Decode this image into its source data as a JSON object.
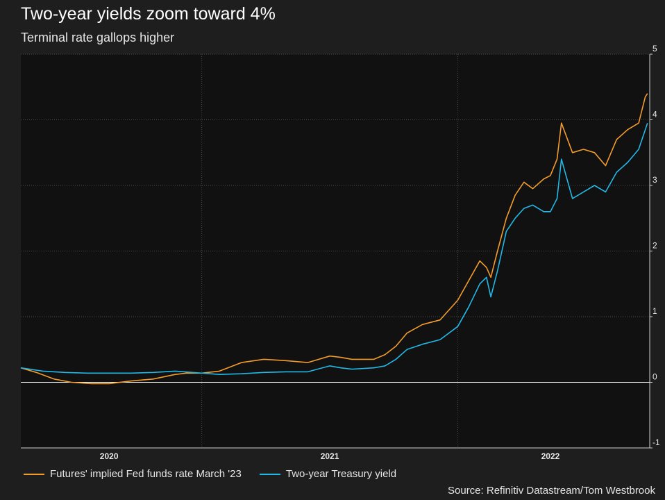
{
  "title": "Two-year yields zoom toward 4%",
  "subtitle": "Terminal rate gallops higher",
  "source": "Source: Refinitiv Datastream/Tom Westbrook",
  "colors": {
    "background": "#1e1e1e",
    "plot_area": "#111111",
    "fed_funds": "#f39c2c",
    "treasury": "#22b8e8",
    "zero_line": "#ffffff",
    "grid": "#4a4a4a"
  },
  "chart_data": {
    "type": "line",
    "title": "Two-year yields zoom toward 4%",
    "subtitle": "Terminal rate gallops higher",
    "xlabel": "",
    "ylabel": "",
    "x_range": [
      2019.6,
      2022.45
    ],
    "ylim": [
      -1,
      5
    ],
    "y_ticks": [
      -1,
      0,
      1,
      2,
      3,
      4,
      5
    ],
    "x_ticks": [
      {
        "label": "2020",
        "x": 2020.0
      },
      {
        "label": "2021",
        "x": 2021.0
      },
      {
        "label": "2022",
        "x": 2022.0
      }
    ],
    "vertical_gridlines": [
      2020.42,
      2021.58
    ],
    "series": [
      {
        "name": "Futures' implied Fed funds rate March '23",
        "x": [
          2019.6,
          2019.67,
          2019.75,
          2019.83,
          2019.92,
          2020.0,
          2020.1,
          2020.2,
          2020.3,
          2020.35,
          2020.42,
          2020.5,
          2020.6,
          2020.7,
          2020.8,
          2020.9,
          2021.0,
          2021.05,
          2021.1,
          2021.2,
          2021.25,
          2021.3,
          2021.35,
          2021.42,
          2021.5,
          2021.58,
          2021.63,
          2021.68,
          2021.71,
          2021.73,
          2021.76,
          2021.8,
          2021.84,
          2021.88,
          2021.92,
          2021.97,
          2022.0,
          2022.03,
          2022.05,
          2022.1,
          2022.15,
          2022.2,
          2022.25,
          2022.3,
          2022.35,
          2022.4,
          2022.43,
          2022.44
        ],
        "values": [
          0.22,
          0.15,
          0.05,
          0.0,
          -0.02,
          -0.02,
          0.02,
          0.05,
          0.12,
          0.14,
          0.14,
          0.17,
          0.3,
          0.35,
          0.33,
          0.3,
          0.4,
          0.38,
          0.35,
          0.35,
          0.42,
          0.55,
          0.75,
          0.88,
          0.95,
          1.25,
          1.55,
          1.85,
          1.75,
          1.6,
          2.0,
          2.5,
          2.85,
          3.05,
          2.95,
          3.1,
          3.15,
          3.4,
          3.95,
          3.5,
          3.55,
          3.5,
          3.3,
          3.7,
          3.85,
          3.95,
          4.35,
          4.4
        ]
      },
      {
        "name": "Two-year Treasury yield",
        "x": [
          2019.6,
          2019.7,
          2019.8,
          2019.9,
          2020.0,
          2020.1,
          2020.2,
          2020.3,
          2020.42,
          2020.5,
          2020.6,
          2020.7,
          2020.8,
          2020.9,
          2021.0,
          2021.05,
          2021.1,
          2021.2,
          2021.25,
          2021.3,
          2021.35,
          2021.42,
          2021.5,
          2021.58,
          2021.63,
          2021.68,
          2021.71,
          2021.73,
          2021.76,
          2021.8,
          2021.84,
          2021.88,
          2021.92,
          2021.97,
          2022.0,
          2022.03,
          2022.05,
          2022.1,
          2022.15,
          2022.2,
          2022.25,
          2022.3,
          2022.35,
          2022.4,
          2022.44
        ],
        "values": [
          0.22,
          0.17,
          0.15,
          0.14,
          0.14,
          0.14,
          0.15,
          0.17,
          0.14,
          0.12,
          0.13,
          0.15,
          0.16,
          0.16,
          0.25,
          0.22,
          0.2,
          0.22,
          0.25,
          0.35,
          0.5,
          0.58,
          0.65,
          0.85,
          1.15,
          1.5,
          1.6,
          1.3,
          1.7,
          2.3,
          2.5,
          2.65,
          2.7,
          2.6,
          2.6,
          2.8,
          3.4,
          2.8,
          2.9,
          3.0,
          2.9,
          3.2,
          3.35,
          3.55,
          3.95
        ]
      }
    ]
  }
}
